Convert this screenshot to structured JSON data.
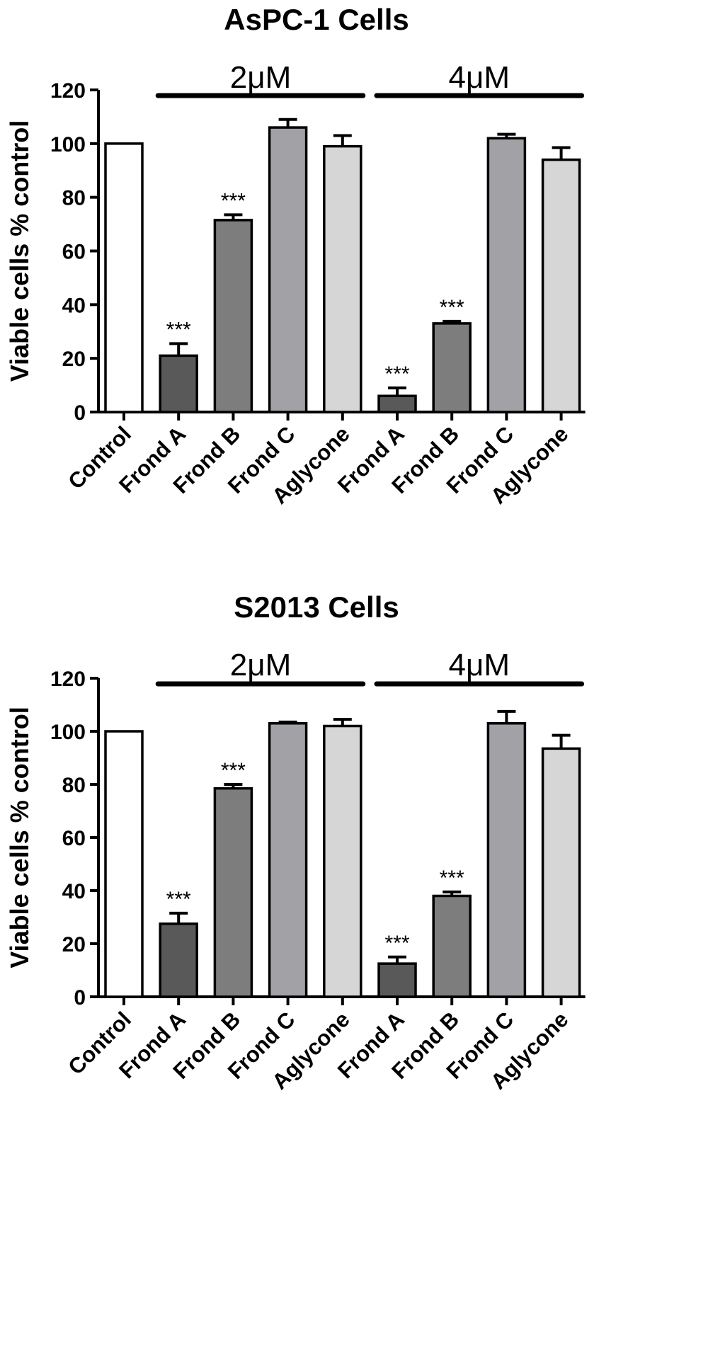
{
  "chart_data": [
    {
      "type": "bar",
      "title": "AsPC-1 Cells",
      "ylabel": "Viable cells % control",
      "xlabel": "",
      "ylim": [
        0,
        120
      ],
      "yticks": [
        "0",
        "20",
        "40",
        "60",
        "80",
        "100",
        "120"
      ],
      "categories": [
        "Control",
        "Frond A",
        "Frond B",
        "Frond C",
        "Aglycone",
        "Frond A",
        "Frond B",
        "Frond C",
        "Aglycone"
      ],
      "values": [
        100,
        21,
        71.5,
        106,
        99,
        6,
        33,
        102,
        94
      ],
      "errors": [
        0,
        4.5,
        2,
        3,
        4,
        3,
        0.8,
        1.5,
        4.5
      ],
      "annotations": [
        "",
        "***",
        "***",
        "",
        "",
        "***",
        "***",
        "",
        ""
      ],
      "bar_colors": [
        "#ffffff",
        "#595959",
        "#7d7d7d",
        "#a2a2a6",
        "#d6d6d6",
        "#595959",
        "#7d7d7d",
        "#a2a2a6",
        "#d6d6d6"
      ],
      "groups": [
        {
          "label": "2μM",
          "from": 1,
          "to": 4
        },
        {
          "label": "4μM",
          "from": 5,
          "to": 8
        }
      ],
      "grid": false
    },
    {
      "type": "bar",
      "title": "S2013 Cells",
      "ylabel": "Viable cells % control",
      "xlabel": "",
      "ylim": [
        0,
        120
      ],
      "yticks": [
        "0",
        "20",
        "40",
        "60",
        "80",
        "100",
        "120"
      ],
      "categories": [
        "Control",
        "Frond A",
        "Frond B",
        "Frond C",
        "Aglycone",
        "Frond A",
        "Frond B",
        "Frond C",
        "Aglycone"
      ],
      "values": [
        100,
        27.5,
        78.5,
        103,
        102,
        12.5,
        38,
        103,
        93.5
      ],
      "errors": [
        0,
        4,
        1.5,
        0.5,
        2.5,
        2.5,
        1.5,
        4.5,
        5
      ],
      "annotations": [
        "",
        "***",
        "***",
        "",
        "",
        "***",
        "***",
        "",
        ""
      ],
      "bar_colors": [
        "#ffffff",
        "#595959",
        "#7d7d7d",
        "#a2a2a6",
        "#d6d6d6",
        "#595959",
        "#7d7d7d",
        "#a2a2a6",
        "#d6d6d6"
      ],
      "groups": [
        {
          "label": "2μM",
          "from": 1,
          "to": 4
        },
        {
          "label": "4μM",
          "from": 5,
          "to": 8
        }
      ],
      "grid": false
    }
  ]
}
